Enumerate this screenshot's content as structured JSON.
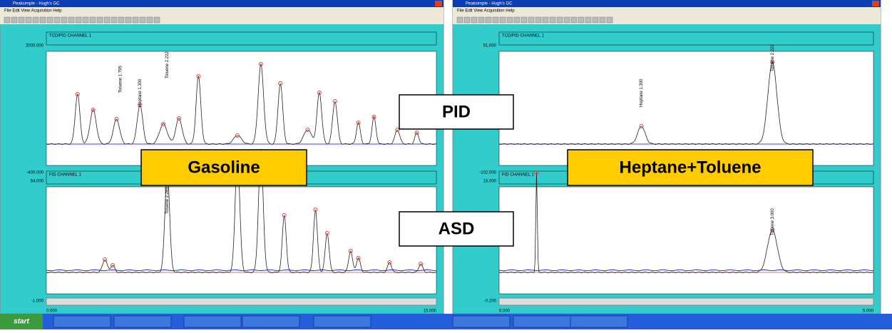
{
  "windows": [
    {
      "title": "Peaksimple - Hugh's GC",
      "menu": "File  Edit  View  Acquisition  Help",
      "top_channel": "TCD/PID CHANNEL 1",
      "top_ymax": "2000.000",
      "top_ymin": "-400.000",
      "bottom_channel": "FID CHANNEL 1",
      "bottom_ymax": "54.000",
      "bottom_ymin": "-1.000",
      "x_start": "0.000",
      "x_end": "15.000",
      "peaks": [
        "Toluene 1.795",
        "Heptane 1.300",
        "Toluene 2.222",
        "Toluene 2.265"
      ]
    },
    {
      "title": "Peaksimple - Hugh's GC",
      "menu": "File  Edit  View  Acquisition  Help",
      "top_channel": "TCD/PID CHANNEL 1",
      "top_ymax": "51.000",
      "top_ymin": "-102.000",
      "bottom_channel": "FID CHANNEL 1",
      "bottom_ymax": "18.000",
      "bottom_ymin": "-0.200",
      "x_start": "0.000",
      "x_end": "5.000",
      "peaks": [
        "Heptane 1.300",
        "Toluene 2.222",
        "Toluene 3.000"
      ]
    }
  ],
  "labels": {
    "left_sample": "Gasoline",
    "right_sample": "Heptane+Toluene",
    "top_detector": "PID",
    "bottom_detector": "ASD"
  },
  "taskbar": {
    "start": "start"
  }
}
